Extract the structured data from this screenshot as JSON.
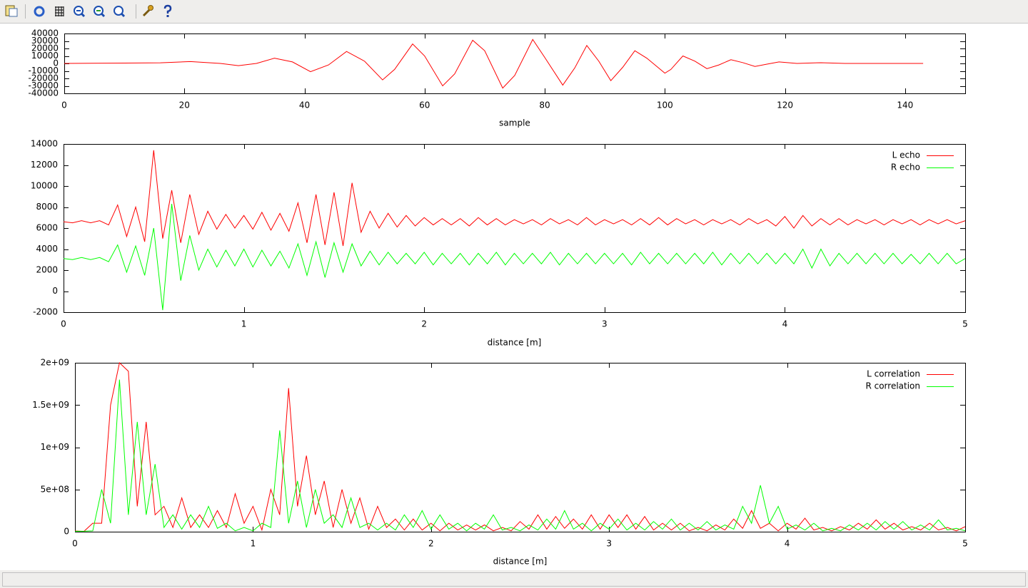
{
  "chart_data": [
    {
      "type": "line",
      "xlabel": "sample",
      "xlim": [
        0,
        150
      ],
      "ylim": [
        -40000,
        40000
      ],
      "xticks": [
        0,
        20,
        40,
        60,
        80,
        100,
        120,
        140
      ],
      "yticks": [
        {
          "value": -40000,
          "label": "-40000"
        },
        {
          "value": -30000,
          "label": "-30000"
        },
        {
          "value": -20000,
          "label": "-20000"
        },
        {
          "value": -10000,
          "label": "-10000"
        },
        0,
        10000,
        20000,
        30000,
        40000
      ],
      "x": [
        0,
        10,
        16,
        21,
        26,
        29,
        32,
        35,
        38,
        41,
        44,
        47,
        50,
        53,
        55,
        58,
        60,
        63,
        65,
        68,
        70,
        73,
        75,
        78,
        80,
        83,
        85,
        87,
        89,
        91,
        93,
        95,
        97,
        100,
        101,
        103,
        105,
        107,
        109,
        111,
        113,
        115,
        117,
        119,
        122,
        126,
        130,
        143
      ],
      "series": [
        {
          "color": "#ff0000",
          "values": [
            0,
            500,
            800,
            2500,
            0,
            -3000,
            0,
            7000,
            2000,
            -11000,
            -2000,
            16000,
            3000,
            -22000,
            -8000,
            26000,
            10000,
            -30000,
            -14000,
            31000,
            17000,
            -33000,
            -16000,
            32000,
            8000,
            -29000,
            -6000,
            24000,
            3000,
            -23000,
            -5000,
            17000,
            7000,
            -13000,
            -8000,
            10000,
            3000,
            -7000,
            -2000,
            5000,
            1000,
            -4000,
            -1000,
            2000,
            0,
            1000,
            0,
            0
          ]
        }
      ]
    },
    {
      "type": "line",
      "xlabel": "distance [m]",
      "legend": "top-right",
      "xlim": [
        0,
        5
      ],
      "ylim": [
        -2000,
        14000
      ],
      "xticks": [
        0,
        1,
        2,
        3,
        4,
        5
      ],
      "yticks": [
        -2000,
        0,
        2000,
        4000,
        6000,
        8000,
        10000,
        12000,
        14000
      ],
      "x": [
        0,
        0.05,
        0.1,
        0.15,
        0.2,
        0.25,
        0.3,
        0.35,
        0.4,
        0.45,
        0.5,
        0.55,
        0.6,
        0.65,
        0.7,
        0.75,
        0.8,
        0.85,
        0.9,
        0.95,
        1,
        1.05,
        1.1,
        1.15,
        1.2,
        1.25,
        1.3,
        1.35,
        1.4,
        1.45,
        1.5,
        1.55,
        1.6,
        1.65,
        1.7,
        1.75,
        1.8,
        1.85,
        1.9,
        1.95,
        2,
        2.05,
        2.1,
        2.15,
        2.2,
        2.25,
        2.3,
        2.35,
        2.4,
        2.45,
        2.5,
        2.55,
        2.6,
        2.65,
        2.7,
        2.75,
        2.8,
        2.85,
        2.9,
        2.95,
        3,
        3.05,
        3.1,
        3.15,
        3.2,
        3.25,
        3.3,
        3.35,
        3.4,
        3.45,
        3.5,
        3.55,
        3.6,
        3.65,
        3.7,
        3.75,
        3.8,
        3.85,
        3.9,
        3.95,
        4,
        4.05,
        4.1,
        4.15,
        4.2,
        4.25,
        4.3,
        4.35,
        4.4,
        4.45,
        4.5,
        4.55,
        4.6,
        4.65,
        4.7,
        4.75,
        4.8,
        4.85,
        4.9,
        4.95,
        5
      ],
      "series": [
        {
          "name": "L echo",
          "color": "#ff0000",
          "values": [
            6600,
            6500,
            6700,
            6500,
            6700,
            6300,
            8200,
            5200,
            8000,
            4700,
            13400,
            5000,
            9600,
            4600,
            9200,
            5400,
            7600,
            5900,
            7300,
            6000,
            7200,
            5900,
            7500,
            5800,
            7400,
            5700,
            8400,
            4600,
            9200,
            4400,
            9400,
            4300,
            10300,
            5600,
            7600,
            6000,
            7400,
            6100,
            7200,
            6200,
            7000,
            6300,
            6900,
            6300,
            6900,
            6200,
            7000,
            6300,
            6900,
            6300,
            6800,
            6400,
            6800,
            6300,
            6900,
            6400,
            6800,
            6300,
            7000,
            6300,
            6800,
            6400,
            6800,
            6300,
            6900,
            6300,
            7000,
            6300,
            6900,
            6400,
            6800,
            6300,
            6800,
            6400,
            6800,
            6300,
            6900,
            6400,
            6800,
            6200,
            7100,
            6000,
            7200,
            6200,
            6900,
            6300,
            6900,
            6300,
            6800,
            6400,
            6800,
            6300,
            6800,
            6400,
            6800,
            6300,
            6800,
            6400,
            6800,
            6400,
            6700
          ]
        },
        {
          "name": "R echo",
          "color": "#00ff00",
          "values": [
            3100,
            3000,
            3200,
            3000,
            3200,
            2800,
            4400,
            1800,
            4300,
            1500,
            6000,
            -1800,
            8300,
            1000,
            5300,
            2000,
            4000,
            2300,
            3900,
            2400,
            4000,
            2300,
            3900,
            2400,
            3800,
            2200,
            4500,
            1500,
            4700,
            1300,
            4600,
            1800,
            4500,
            2400,
            3800,
            2500,
            3700,
            2600,
            3600,
            2600,
            3700,
            2500,
            3600,
            2600,
            3600,
            2500,
            3600,
            2600,
            3700,
            2500,
            3600,
            2600,
            3600,
            2600,
            3700,
            2500,
            3600,
            2600,
            3600,
            2600,
            3600,
            2600,
            3600,
            2500,
            3700,
            2600,
            3600,
            2600,
            3600,
            2600,
            3600,
            2600,
            3700,
            2500,
            3600,
            2600,
            3600,
            2600,
            3600,
            2600,
            3600,
            2600,
            4000,
            2200,
            4000,
            2400,
            3600,
            2600,
            3600,
            2600,
            3600,
            2600,
            3600,
            2600,
            3500,
            2600,
            3600,
            2600,
            3600,
            2600,
            3100
          ]
        }
      ]
    },
    {
      "type": "line",
      "xlabel": "distance [m]",
      "legend": "top-right",
      "xlim": [
        0,
        5
      ],
      "ylim": [
        0,
        2000000000
      ],
      "xticks": [
        0,
        1,
        2,
        3,
        4,
        5
      ],
      "yticks": [
        0,
        {
          "value": 500000000,
          "label": "5e+08"
        },
        {
          "value": 1000000000,
          "label": "1e+09"
        },
        {
          "value": 1500000000,
          "label": "1.5e+09"
        },
        {
          "value": 2000000000,
          "label": "2e+09"
        }
      ],
      "x": [
        0,
        0.05,
        0.1,
        0.15,
        0.2,
        0.25,
        0.3,
        0.35,
        0.4,
        0.45,
        0.5,
        0.55,
        0.6,
        0.65,
        0.7,
        0.75,
        0.8,
        0.85,
        0.9,
        0.95,
        1,
        1.05,
        1.1,
        1.15,
        1.2,
        1.25,
        1.3,
        1.35,
        1.4,
        1.45,
        1.5,
        1.55,
        1.6,
        1.65,
        1.7,
        1.75,
        1.8,
        1.85,
        1.9,
        1.95,
        2,
        2.05,
        2.1,
        2.15,
        2.2,
        2.25,
        2.3,
        2.35,
        2.4,
        2.45,
        2.5,
        2.55,
        2.6,
        2.65,
        2.7,
        2.75,
        2.8,
        2.85,
        2.9,
        2.95,
        3,
        3.05,
        3.1,
        3.15,
        3.2,
        3.25,
        3.3,
        3.35,
        3.4,
        3.45,
        3.5,
        3.55,
        3.6,
        3.65,
        3.7,
        3.75,
        3.8,
        3.85,
        3.9,
        3.95,
        4,
        4.05,
        4.1,
        4.15,
        4.2,
        4.25,
        4.3,
        4.35,
        4.4,
        4.45,
        4.5,
        4.55,
        4.6,
        4.65,
        4.7,
        4.75,
        4.8,
        4.85,
        4.9,
        4.95,
        5
      ],
      "series": [
        {
          "name": "L correlation",
          "color": "#ff0000",
          "values": [
            10000000.0,
            3000000.0,
            100000000.0,
            100000000.0,
            1500000000.0,
            2000000000.0,
            1900000000.0,
            300000000.0,
            1300000000.0,
            200000000.0,
            300000000.0,
            50000000.0,
            400000000.0,
            50000000.0,
            200000000.0,
            50000000.0,
            250000000.0,
            50000000.0,
            450000000.0,
            100000000.0,
            300000000.0,
            20000000.0,
            500000000.0,
            200000000.0,
            1700000000.0,
            300000000.0,
            900000000.0,
            200000000.0,
            600000000.0,
            50000000.0,
            500000000.0,
            100000000.0,
            400000000.0,
            30000000.0,
            300000000.0,
            50000000.0,
            150000000.0,
            20000000.0,
            150000000.0,
            20000000.0,
            100000000.0,
            10000000.0,
            100000000.0,
            20000000.0,
            80000000.0,
            20000000.0,
            80000000.0,
            10000000.0,
            50000000.0,
            10000000.0,
            120000000.0,
            30000000.0,
            200000000.0,
            30000000.0,
            180000000.0,
            40000000.0,
            150000000.0,
            30000000.0,
            200000000.0,
            30000000.0,
            200000000.0,
            50000000.0,
            200000000.0,
            30000000.0,
            180000000.0,
            20000000.0,
            100000000.0,
            20000000.0,
            100000000.0,
            10000000.0,
            50000000.0,
            10000000.0,
            80000000.0,
            20000000.0,
            150000000.0,
            40000000.0,
            250000000.0,
            40000000.0,
            100000000.0,
            10000000.0,
            100000000.0,
            30000000.0,
            160000000.0,
            20000000.0,
            50000000.0,
            10000000.0,
            60000000.0,
            20000000.0,
            100000000.0,
            30000000.0,
            140000000.0,
            30000000.0,
            100000000.0,
            20000000.0,
            60000000.0,
            20000000.0,
            100000000.0,
            20000000.0,
            50000000.0,
            10000000.0,
            60000000.0
          ]
        },
        {
          "name": "R correlation",
          "color": "#00ff00",
          "values": [
            5000000.0,
            5000000.0,
            10000000.0,
            500000000.0,
            100000000.0,
            1800000000.0,
            200000000.0,
            1300000000.0,
            200000000.0,
            800000000.0,
            50000000.0,
            200000000.0,
            30000000.0,
            200000000.0,
            50000000.0,
            300000000.0,
            40000000.0,
            100000000.0,
            10000000.0,
            50000000.0,
            10000000.0,
            100000000.0,
            50000000.0,
            1200000000.0,
            100000000.0,
            600000000.0,
            50000000.0,
            500000000.0,
            100000000.0,
            200000000.0,
            50000000.0,
            400000000.0,
            50000000.0,
            100000000.0,
            20000000.0,
            100000000.0,
            20000000.0,
            200000000.0,
            50000000.0,
            250000000.0,
            30000000.0,
            200000000.0,
            30000000.0,
            100000000.0,
            10000000.0,
            100000000.0,
            30000000.0,
            200000000.0,
            20000000.0,
            50000000.0,
            10000000.0,
            80000000.0,
            20000000.0,
            150000000.0,
            30000000.0,
            250000000.0,
            30000000.0,
            100000000.0,
            10000000.0,
            100000000.0,
            30000000.0,
            150000000.0,
            20000000.0,
            100000000.0,
            20000000.0,
            120000000.0,
            30000000.0,
            150000000.0,
            20000000.0,
            100000000.0,
            20000000.0,
            120000000.0,
            20000000.0,
            80000000.0,
            30000000.0,
            300000000.0,
            100000000.0,
            550000000.0,
            100000000.0,
            300000000.0,
            30000000.0,
            80000000.0,
            20000000.0,
            100000000.0,
            10000000.0,
            40000000.0,
            10000000.0,
            80000000.0,
            20000000.0,
            100000000.0,
            20000000.0,
            120000000.0,
            30000000.0,
            120000000.0,
            20000000.0,
            80000000.0,
            20000000.0,
            140000000.0,
            20000000.0,
            40000000.0,
            10000000.0
          ]
        }
      ]
    }
  ]
}
